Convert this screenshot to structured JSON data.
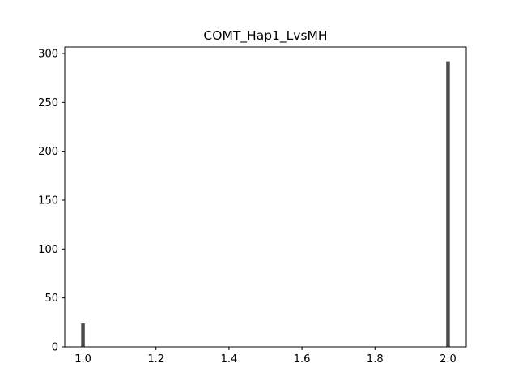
{
  "chart_data": {
    "type": "bar",
    "title": "COMT_Hap1_LvsMH",
    "xlabel": "",
    "ylabel": "",
    "xlim": [
      0.95,
      2.05
    ],
    "ylim": [
      0,
      306.6
    ],
    "x_ticks": [
      "1.0",
      "1.2",
      "1.4",
      "1.6",
      "1.8",
      "2.0"
    ],
    "y_ticks": [
      "0",
      "50",
      "100",
      "150",
      "200",
      "250",
      "300"
    ],
    "bar_color": "#4c4c4c",
    "bar_width": 0.01,
    "bars": [
      {
        "x": 1.0,
        "value": 24
      },
      {
        "x": 2.0,
        "value": 292
      }
    ],
    "grid": false,
    "legend": "none"
  }
}
